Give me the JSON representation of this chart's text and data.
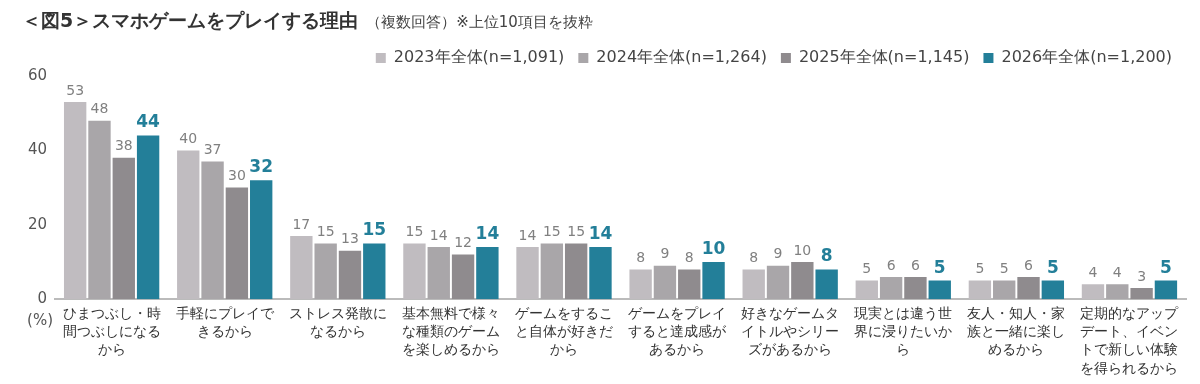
{
  "chart_data": {
    "type": "bar",
    "title": "＜図5＞スマホゲームをプレイする理由",
    "subtitle": "（複数回答）※上位10項目を抜粋",
    "ylabel": "(%)",
    "categories": [
      "ひまつぶし・時間つぶしになるから",
      "手軽にプレイできるから",
      "ストレス発散になるから",
      "基本無料で様々な種類のゲームを楽しめるから",
      "ゲームをすること自体が好きだから",
      "ゲームをプレイすると達成感があるから",
      "好きなゲームタイトルやシリーズがあるから",
      "現実とは違う世界に浸りたいから",
      "友人・知人・家族と一緒に楽しめるから",
      "定期的なアップデート、イベントで新しい体験を得られるから"
    ],
    "series": [
      {
        "name": "2023年全体(n=1,091)",
        "color": "#c0bcc0",
        "values": [
          53,
          40,
          17,
          15,
          14,
          8,
          8,
          5,
          5,
          4
        ]
      },
      {
        "name": "2024年全体(n=1,264)",
        "color": "#a9a6a9",
        "values": [
          48,
          37,
          15,
          14,
          15,
          9,
          9,
          6,
          5,
          4
        ]
      },
      {
        "name": "2025年全体(n=1,145)",
        "color": "#8f8b8e",
        "values": [
          38,
          30,
          13,
          12,
          15,
          8,
          10,
          6,
          6,
          3
        ]
      },
      {
        "name": "2026年全体(n=1,200)",
        "color": "#237f99",
        "values": [
          44,
          32,
          15,
          14,
          14,
          10,
          8,
          5,
          5,
          5
        ]
      }
    ],
    "ylim": [
      0,
      60
    ],
    "yticks": [
      0,
      20,
      40,
      60
    ],
    "grid": false,
    "legend": "top right",
    "data_labels": true
  }
}
